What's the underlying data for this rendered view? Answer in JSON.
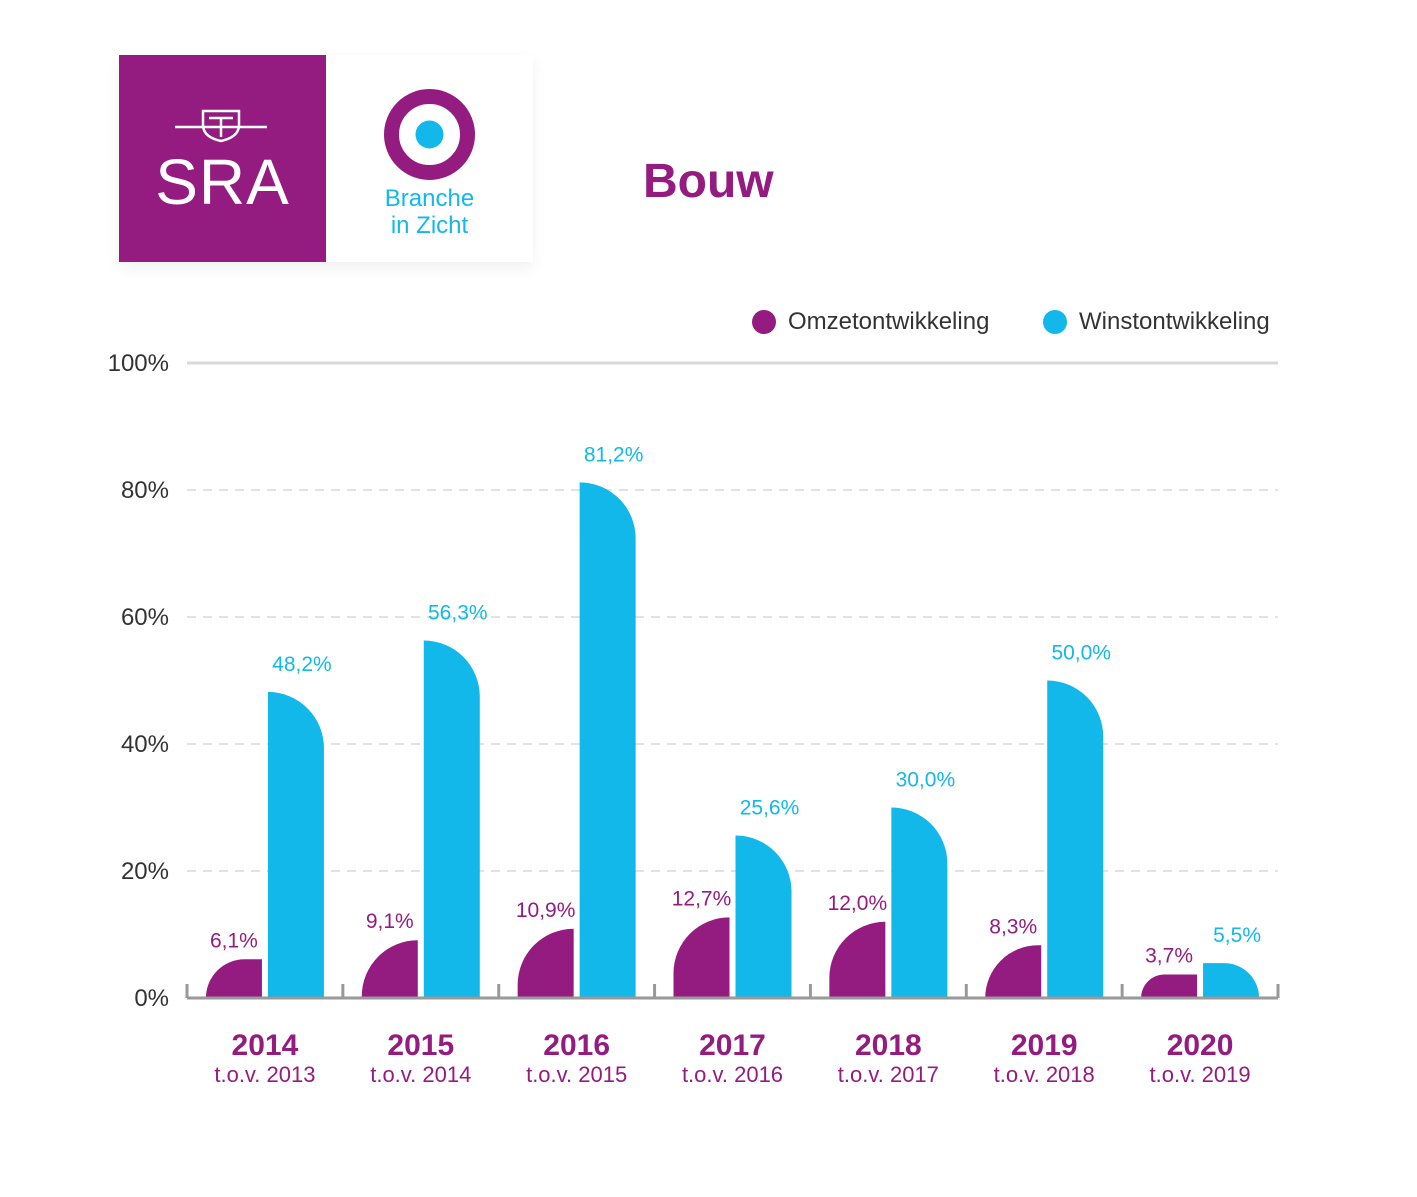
{
  "logo": {
    "sra_text": "SRA",
    "biz_line1": "Branche",
    "biz_line2": "in Zicht"
  },
  "title": "Bouw",
  "colors": {
    "omzet": "#941b80",
    "winst": "#12b8ea",
    "grid": "#d9d9d9",
    "axis": "#999999"
  },
  "legend": {
    "omzet_label": "Omzetontwikkeling",
    "winst_label": "Winstontwikkeling"
  },
  "chart_data": {
    "type": "bar",
    "title": "Bouw",
    "categories": [
      "2014",
      "2015",
      "2016",
      "2017",
      "2018",
      "2019",
      "2020"
    ],
    "category_sublabels": [
      "t.o.v. 2013",
      "t.o.v. 2014",
      "t.o.v. 2015",
      "t.o.v. 2016",
      "t.o.v. 2017",
      "t.o.v. 2018",
      "t.o.v. 2019"
    ],
    "series": [
      {
        "name": "Omzetontwikkeling",
        "values": [
          6.1,
          9.1,
          10.9,
          12.7,
          12.0,
          8.3,
          3.7
        ],
        "labels": [
          "6,1%",
          "9,1%",
          "10,9%",
          "12,7%",
          "12,0%",
          "8,3%",
          "3,7%"
        ]
      },
      {
        "name": "Winstontwikkeling",
        "values": [
          48.2,
          56.3,
          81.2,
          25.6,
          30.0,
          50.0,
          5.5
        ],
        "labels": [
          "48,2%",
          "56,3%",
          "81,2%",
          "25,6%",
          "30,0%",
          "50,0%",
          "5,5%"
        ]
      }
    ],
    "yticks": [
      "0%",
      "20%",
      "40%",
      "60%",
      "80%",
      "100%"
    ],
    "ylim": [
      0,
      100
    ],
    "grid": true,
    "legend_position": "top-right"
  }
}
